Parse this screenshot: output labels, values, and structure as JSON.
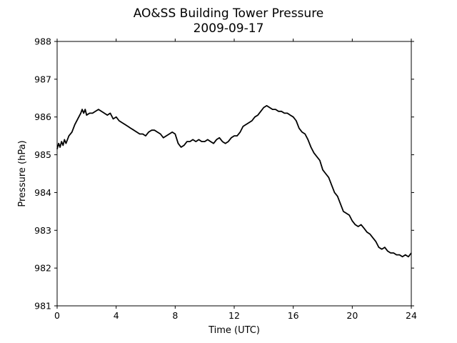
{
  "chart_data": {
    "type": "line",
    "title": "AO&SS Building Tower Pressure",
    "subtitle": "2009-09-17",
    "xlabel": "Time (UTC)",
    "ylabel": "Pressure (hPa)",
    "xlim": [
      0,
      24
    ],
    "ylim": [
      981,
      988
    ],
    "xticks": [
      0,
      4,
      8,
      12,
      16,
      20,
      24
    ],
    "yticks": [
      981,
      982,
      983,
      984,
      985,
      986,
      987,
      988
    ],
    "grid": false,
    "line_color": "#000000",
    "series": [
      {
        "x": [
          0.0,
          0.1,
          0.2,
          0.3,
          0.4,
          0.5,
          0.6,
          0.8,
          1.0,
          1.2,
          1.4,
          1.6,
          1.7,
          1.8,
          1.9,
          2.0,
          2.2,
          2.4,
          2.6,
          2.8,
          3.0,
          3.2,
          3.4,
          3.6,
          3.8,
          4.0,
          4.2,
          4.4,
          4.6,
          4.8,
          5.0,
          5.2,
          5.4,
          5.6,
          5.8,
          6.0,
          6.2,
          6.4,
          6.6,
          6.8,
          7.0,
          7.2,
          7.4,
          7.6,
          7.8,
          8.0,
          8.2,
          8.4,
          8.6,
          8.8,
          9.0,
          9.2,
          9.4,
          9.6,
          9.8,
          10.0,
          10.2,
          10.4,
          10.6,
          10.8,
          11.0,
          11.2,
          11.4,
          11.6,
          11.8,
          12.0,
          12.2,
          12.4,
          12.6,
          12.8,
          13.0,
          13.2,
          13.4,
          13.6,
          13.8,
          14.0,
          14.2,
          14.4,
          14.6,
          14.8,
          15.0,
          15.2,
          15.4,
          15.6,
          15.8,
          16.0,
          16.2,
          16.4,
          16.6,
          16.8,
          17.0,
          17.2,
          17.4,
          17.6,
          17.8,
          18.0,
          18.2,
          18.4,
          18.6,
          18.8,
          19.0,
          19.2,
          19.4,
          19.6,
          19.8,
          20.0,
          20.2,
          20.4,
          20.6,
          20.8,
          21.0,
          21.2,
          21.4,
          21.6,
          21.8,
          22.0,
          22.2,
          22.4,
          22.6,
          22.8,
          23.0,
          23.2,
          23.4,
          23.6,
          23.8,
          24.0
        ],
        "y": [
          985.15,
          985.3,
          985.2,
          985.35,
          985.25,
          985.4,
          985.3,
          985.5,
          985.6,
          985.8,
          985.95,
          986.1,
          986.2,
          986.1,
          986.2,
          986.05,
          986.1,
          986.1,
          986.15,
          986.2,
          986.15,
          986.1,
          986.05,
          986.1,
          985.95,
          986.0,
          985.9,
          985.85,
          985.8,
          985.75,
          985.7,
          985.65,
          985.6,
          985.55,
          985.55,
          985.5,
          985.6,
          985.65,
          985.65,
          985.6,
          985.55,
          985.45,
          985.5,
          985.55,
          985.6,
          985.55,
          985.3,
          985.2,
          985.25,
          985.35,
          985.35,
          985.4,
          985.35,
          985.4,
          985.35,
          985.35,
          985.4,
          985.35,
          985.3,
          985.4,
          985.45,
          985.35,
          985.3,
          985.35,
          985.45,
          985.5,
          985.5,
          985.6,
          985.75,
          985.8,
          985.85,
          985.9,
          986.0,
          986.05,
          986.15,
          986.25,
          986.3,
          986.25,
          986.2,
          986.2,
          986.15,
          986.15,
          986.1,
          986.1,
          986.05,
          986.0,
          985.9,
          985.7,
          985.6,
          985.55,
          985.4,
          985.2,
          985.05,
          984.95,
          984.85,
          984.6,
          984.5,
          984.4,
          984.2,
          984.0,
          983.9,
          983.7,
          983.5,
          983.45,
          983.4,
          983.25,
          983.15,
          983.1,
          983.15,
          983.05,
          982.95,
          982.9,
          982.8,
          982.7,
          982.55,
          982.5,
          982.55,
          982.45,
          982.4,
          982.4,
          982.35,
          982.35,
          982.3,
          982.35,
          982.3,
          982.4
        ]
      }
    ]
  }
}
